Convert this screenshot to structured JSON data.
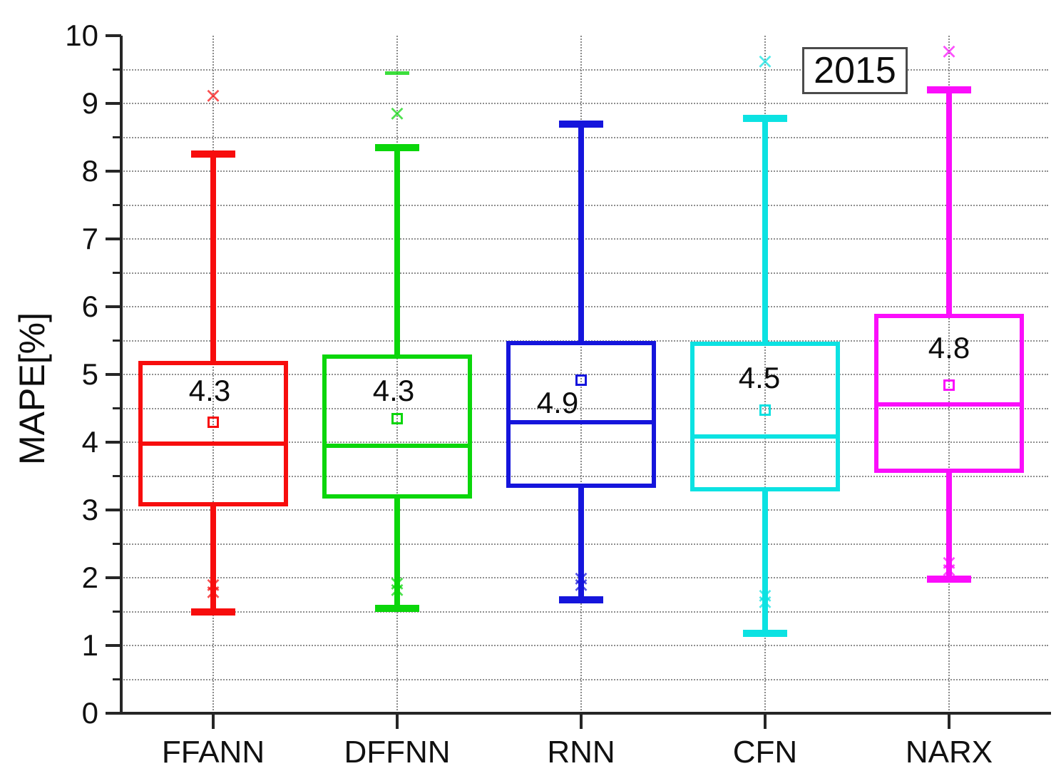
{
  "legend": {
    "label": "2015"
  },
  "y_axis": {
    "label": "MAPE[%]",
    "min": 0,
    "max": 10,
    "major_step": 1,
    "minor_step": 0.5,
    "tick_labels": [
      "0",
      "1",
      "2",
      "3",
      "4",
      "5",
      "6",
      "7",
      "8",
      "9",
      "10"
    ]
  },
  "x_axis": {
    "categories": [
      "FFANN",
      "DFFNN",
      "RNN",
      "CFN",
      "NARX"
    ]
  },
  "chart_data": {
    "type": "boxplot",
    "title": "",
    "xlabel": "",
    "ylabel": "MAPE[%]",
    "ylim": [
      0,
      10
    ],
    "legend_label": "2015",
    "legend_position": "top-right",
    "grid": {
      "style": "dotted",
      "horizontal_step": 0.5,
      "vertical": "at each category center"
    },
    "categories": [
      "FFANN",
      "DFFNN",
      "RNN",
      "CFN",
      "NARX"
    ],
    "series": [
      {
        "name": "FFANN",
        "color": "#f70d0d",
        "whisker_high": 8.25,
        "q3": 5.2,
        "mean": 4.3,
        "median": 3.98,
        "q1": 3.05,
        "whisker_low": 1.5,
        "mean_label": "4.3",
        "label_value": 4.76,
        "label_dx": -5,
        "outliers_above": [
          {
            "marker": "x",
            "value": 9.1
          }
        ],
        "outliers_below": [
          {
            "marker": "x",
            "value": 1.87
          },
          {
            "marker": "x",
            "value": 1.77
          }
        ]
      },
      {
        "name": "DFFNN",
        "color": "#0bd60b",
        "whisker_high": 8.35,
        "q3": 5.3,
        "mean": 4.35,
        "median": 3.95,
        "q1": 3.17,
        "whisker_low": 1.55,
        "mean_label": "4.3",
        "label_value": 4.76,
        "label_dx": -5,
        "outliers_above": [
          {
            "marker": "dash",
            "value": 9.45
          },
          {
            "marker": "x",
            "value": 8.83
          }
        ],
        "outliers_below": [
          {
            "marker": "x",
            "value": 1.9
          },
          {
            "marker": "x",
            "value": 1.8
          }
        ]
      },
      {
        "name": "RNN",
        "color": "#1515dc",
        "whisker_high": 8.7,
        "q3": 5.5,
        "mean": 4.92,
        "median": 4.3,
        "q1": 3.33,
        "whisker_low": 1.67,
        "mean_label": "4.9",
        "label_value": 4.58,
        "label_dx": -33,
        "outliers_above": [],
        "outliers_below": [
          {
            "marker": "x",
            "value": 1.97
          },
          {
            "marker": "x",
            "value": 1.87
          }
        ]
      },
      {
        "name": "CFN",
        "color": "#0ce2e2",
        "whisker_high": 8.78,
        "q3": 5.48,
        "mean": 4.47,
        "median": 4.08,
        "q1": 3.27,
        "whisker_low": 1.18,
        "mean_label": "4.5",
        "label_value": 4.95,
        "label_dx": -8,
        "outliers_above": [
          {
            "marker": "x",
            "value": 9.6
          }
        ],
        "outliers_below": [
          {
            "marker": "x",
            "value": 1.72
          },
          {
            "marker": "x",
            "value": 1.62
          }
        ]
      },
      {
        "name": "NARX",
        "color": "#fb0dfb",
        "whisker_high": 9.2,
        "q3": 5.9,
        "mean": 4.84,
        "median": 4.56,
        "q1": 3.55,
        "whisker_low": 1.98,
        "mean_label": "4.8",
        "label_value": 5.39,
        "label_dx": 0,
        "outliers_above": [
          {
            "marker": "x",
            "value": 9.75
          }
        ],
        "outliers_below": [
          {
            "marker": "x",
            "value": 2.2
          },
          {
            "marker": "x",
            "value": 2.1
          }
        ]
      }
    ]
  }
}
